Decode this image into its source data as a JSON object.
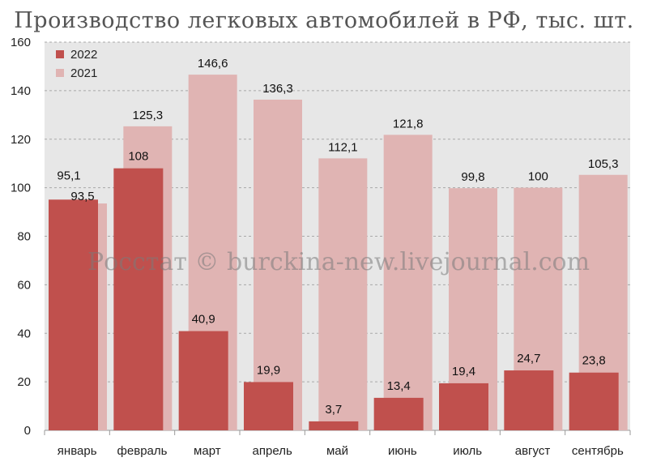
{
  "title": "Производство легковых автомобилей в РФ, тыс. шт.",
  "watermark": "Росстат © burckina-new.livejournal.com",
  "colors": {
    "plot_background": "#e7e7e7",
    "series_2022": "#c0504d",
    "series_2021": "#e0b4b3",
    "grid": "#ffffff"
  },
  "chart_data": {
    "type": "bar",
    "title": "Производство легковых автомобилей в РФ, тыс. шт.",
    "categories": [
      "январь",
      "февраль",
      "март",
      "апрель",
      "май",
      "июнь",
      "июль",
      "август",
      "сентябрь"
    ],
    "series": [
      {
        "name": "2022",
        "values": [
          95.1,
          108,
          40.9,
          19.9,
          3.7,
          13.4,
          19.4,
          24.7,
          23.8
        ],
        "labels": [
          "95,1",
          "108",
          "40,9",
          "19,9",
          "3,7",
          "13,4",
          "19,4",
          "24,7",
          "23,8"
        ]
      },
      {
        "name": "2021",
        "values": [
          93.5,
          125.3,
          146.6,
          136.3,
          112.1,
          121.8,
          99.8,
          100,
          105.3
        ],
        "labels": [
          "93,5",
          "125,3",
          "146,6",
          "136,3",
          "112,1",
          "121,8",
          "99,8",
          "100",
          "105,3"
        ]
      }
    ],
    "ylim": [
      0,
      160
    ],
    "yticks": [
      0,
      20,
      40,
      60,
      80,
      100,
      120,
      140,
      160
    ],
    "grid": true,
    "legend": "top-left",
    "xlabel": "",
    "ylabel": ""
  }
}
